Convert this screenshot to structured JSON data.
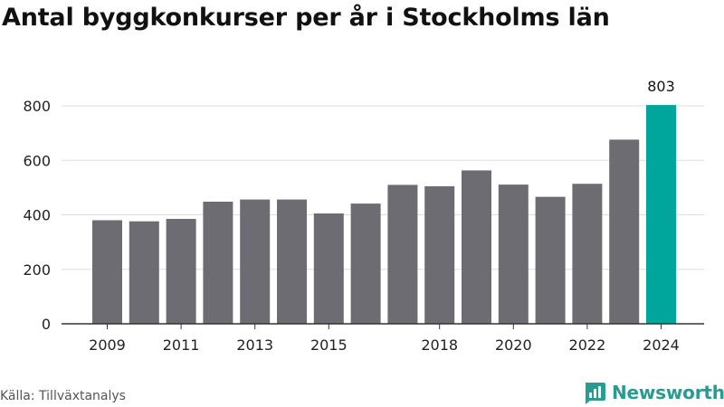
{
  "header": {
    "title": "Antal byggkonkurser per år i Stockholms län"
  },
  "footer": {
    "source": "Källa: Tillväxtanalys",
    "brand": "Newsworthy"
  },
  "colors": {
    "bar": "#6d6c72",
    "highlight": "#00a59b",
    "grid": "#dddddd",
    "axis": "#333333",
    "brand": "#2a9b8f"
  },
  "icons": {
    "brand_logo": "newsworthy-logo-icon"
  },
  "chart_data": {
    "type": "bar",
    "title": "Antal byggkonkurser per år i Stockholms län",
    "xlabel": "",
    "ylabel": "",
    "categories": [
      "2009",
      "2010",
      "2011",
      "2012",
      "2013",
      "2014",
      "2015",
      "2016",
      "2017",
      "2018",
      "2019",
      "2020",
      "2021",
      "2022",
      "2023",
      "2024"
    ],
    "x_tick_labels": [
      "2009",
      "2011",
      "2013",
      "2015",
      "2018",
      "2020",
      "2022",
      "2024"
    ],
    "values": [
      380,
      376,
      385,
      448,
      456,
      456,
      405,
      441,
      510,
      505,
      563,
      511,
      466,
      514,
      676,
      803
    ],
    "highlight_index": 15,
    "highlight_label": "803",
    "ylim": [
      0,
      800
    ],
    "y_ticks": [
      0,
      200,
      400,
      600,
      800
    ],
    "grid": true,
    "legend": "none"
  }
}
